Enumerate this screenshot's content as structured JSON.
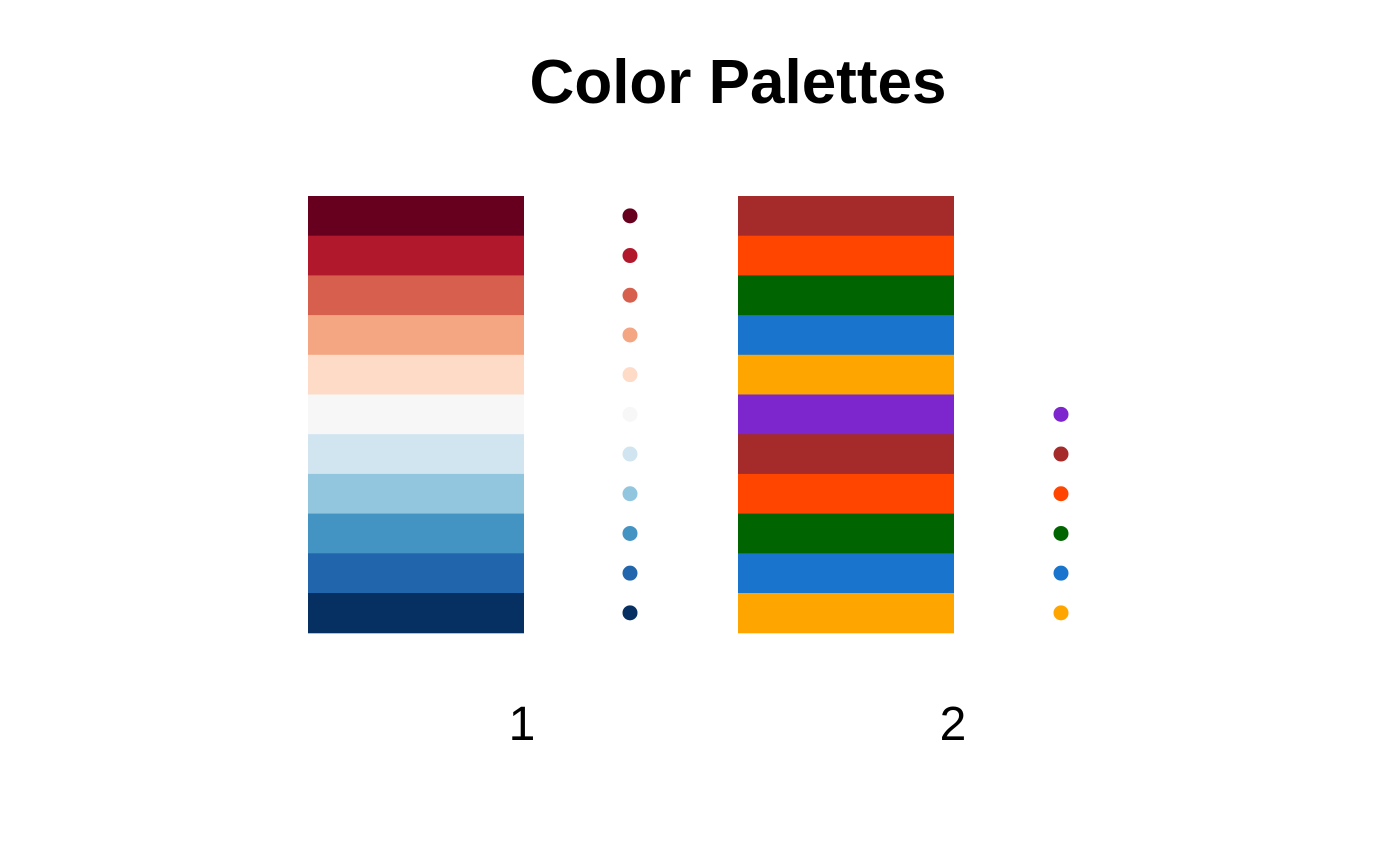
{
  "chart_data": {
    "type": "table",
    "title": "Color Palettes",
    "palettes": [
      {
        "label": "1",
        "colors": [
          "#67001F",
          "#B2182B",
          "#D6604D",
          "#F4A582",
          "#FDDBC7",
          "#F7F7F7",
          "#D1E5F0",
          "#92C5DE",
          "#4393C3",
          "#2166AC",
          "#053061"
        ]
      },
      {
        "label": "2",
        "colors": [
          "#A52A2A",
          "#FF4500",
          "#006400",
          "#1874CD",
          "#FFA500",
          "#7D26CD",
          "#A52A2A",
          "#FF4500",
          "#006400",
          "#1874CD",
          "#FFA500"
        ]
      }
    ],
    "dot_colors": [
      [
        "#67001F",
        "#B2182B",
        "#D6604D",
        "#F4A582",
        "#FDDBC7",
        "#F7F7F7",
        "#D1E5F0",
        "#92C5DE",
        "#4393C3",
        "#2166AC",
        "#053061"
      ],
      [
        "#7D26CD",
        "#A52A2A",
        "#FF4500",
        "#006400",
        "#1874CD",
        "#FFA500"
      ]
    ],
    "background": "#FFFFFF",
    "grid": false
  }
}
